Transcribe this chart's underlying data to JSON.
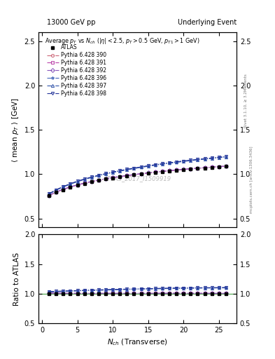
{
  "title_left": "13000 GeV pp",
  "title_right": "Underlying Event",
  "inner_title": "Average $p_{T}$ vs $N_{ch}$ ($|\\eta| < 2.5$, $p_{T} > 0.5$ GeV, $p_{T1} > 1$ GeV)",
  "ylabel_main": "$\\langle$ mean $p_{T}$ $\\rangle$ [GeV]",
  "ylabel_ratio": "Ratio to ATLAS",
  "xlabel": "$N_{ch}$ (Transverse)",
  "watermark": "ATLAS_2017_I1509919",
  "right_label1": "Rivet 3.1.10, ≥ 3.2M events",
  "right_label2": "mcplots.cern.ch [arXiv:1306.3436]",
  "ylim_main": [
    0.4,
    2.6
  ],
  "ylim_ratio": [
    0.5,
    2.0
  ],
  "yticks_main": [
    0.5,
    1.0,
    1.5,
    2.0,
    2.5
  ],
  "yticks_ratio": [
    0.5,
    1.0,
    1.5,
    2.0
  ],
  "xlim": [
    -0.5,
    27.5
  ],
  "xticks": [
    0,
    5,
    10,
    15,
    20,
    25
  ],
  "atlas_x": [
    1,
    2,
    3,
    4,
    5,
    6,
    7,
    8,
    9,
    10,
    11,
    12,
    13,
    14,
    15,
    16,
    17,
    18,
    19,
    20,
    21,
    22,
    23,
    24,
    25,
    26
  ],
  "atlas_y": [
    0.755,
    0.795,
    0.825,
    0.853,
    0.876,
    0.896,
    0.914,
    0.93,
    0.945,
    0.958,
    0.97,
    0.981,
    0.992,
    1.001,
    1.011,
    1.019,
    1.027,
    1.035,
    1.042,
    1.05,
    1.057,
    1.063,
    1.069,
    1.076,
    1.082,
    1.088
  ],
  "atlas_yerr": [
    0.01,
    0.008,
    0.007,
    0.006,
    0.006,
    0.005,
    0.005,
    0.005,
    0.005,
    0.005,
    0.005,
    0.005,
    0.005,
    0.005,
    0.005,
    0.005,
    0.005,
    0.005,
    0.006,
    0.006,
    0.006,
    0.006,
    0.007,
    0.007,
    0.008,
    0.009
  ],
  "series": [
    {
      "label": "Pythia 6.428 390",
      "color": "#cc6677",
      "marker": "o",
      "linestyle": "-.",
      "x": [
        1,
        2,
        3,
        4,
        5,
        6,
        7,
        8,
        9,
        10,
        11,
        12,
        13,
        14,
        15,
        16,
        17,
        18,
        19,
        20,
        21,
        22,
        23,
        24,
        25,
        26
      ],
      "y": [
        0.758,
        0.797,
        0.827,
        0.854,
        0.877,
        0.897,
        0.915,
        0.931,
        0.946,
        0.959,
        0.971,
        0.982,
        0.993,
        1.003,
        1.012,
        1.021,
        1.029,
        1.037,
        1.045,
        1.052,
        1.059,
        1.065,
        1.071,
        1.077,
        1.083,
        1.089
      ]
    },
    {
      "label": "Pythia 6.428 391",
      "color": "#bb44aa",
      "marker": "s",
      "linestyle": "-.",
      "x": [
        1,
        2,
        3,
        4,
        5,
        6,
        7,
        8,
        9,
        10,
        11,
        12,
        13,
        14,
        15,
        16,
        17,
        18,
        19,
        20,
        21,
        22,
        23,
        24,
        25,
        26
      ],
      "y": [
        0.76,
        0.799,
        0.829,
        0.856,
        0.879,
        0.899,
        0.917,
        0.933,
        0.948,
        0.961,
        0.973,
        0.984,
        0.995,
        1.005,
        1.014,
        1.023,
        1.031,
        1.039,
        1.047,
        1.054,
        1.061,
        1.067,
        1.073,
        1.079,
        1.085,
        1.091
      ]
    },
    {
      "label": "Pythia 6.428 392",
      "color": "#8855bb",
      "marker": "D",
      "linestyle": "-.",
      "x": [
        1,
        2,
        3,
        4,
        5,
        6,
        7,
        8,
        9,
        10,
        11,
        12,
        13,
        14,
        15,
        16,
        17,
        18,
        19,
        20,
        21,
        22,
        23,
        24,
        25,
        26
      ],
      "y": [
        0.761,
        0.8,
        0.83,
        0.857,
        0.88,
        0.9,
        0.918,
        0.934,
        0.949,
        0.962,
        0.974,
        0.985,
        0.996,
        1.006,
        1.015,
        1.024,
        1.032,
        1.04,
        1.048,
        1.055,
        1.062,
        1.068,
        1.074,
        1.08,
        1.086,
        1.092
      ]
    },
    {
      "label": "Pythia 6.428 396",
      "color": "#4466bb",
      "marker": "*",
      "linestyle": "-.",
      "x": [
        1,
        2,
        3,
        4,
        5,
        6,
        7,
        8,
        9,
        10,
        11,
        12,
        13,
        14,
        15,
        16,
        17,
        18,
        19,
        20,
        21,
        22,
        23,
        24,
        25,
        26
      ],
      "y": [
        0.775,
        0.82,
        0.855,
        0.887,
        0.915,
        0.94,
        0.962,
        0.982,
        1.001,
        1.018,
        1.034,
        1.049,
        1.063,
        1.076,
        1.089,
        1.101,
        1.112,
        1.123,
        1.133,
        1.143,
        1.152,
        1.161,
        1.169,
        1.177,
        1.185,
        1.193
      ]
    },
    {
      "label": "Pythia 6.428 397",
      "color": "#3355aa",
      "marker": "^",
      "linestyle": "-.",
      "x": [
        1,
        2,
        3,
        4,
        5,
        6,
        7,
        8,
        9,
        10,
        11,
        12,
        13,
        14,
        15,
        16,
        17,
        18,
        19,
        20,
        21,
        22,
        23,
        24,
        25,
        26
      ],
      "y": [
        0.778,
        0.823,
        0.858,
        0.89,
        0.918,
        0.943,
        0.965,
        0.985,
        1.004,
        1.021,
        1.037,
        1.052,
        1.066,
        1.079,
        1.092,
        1.104,
        1.115,
        1.126,
        1.136,
        1.146,
        1.155,
        1.164,
        1.172,
        1.18,
        1.188,
        1.196
      ]
    },
    {
      "label": "Pythia 6.428 398",
      "color": "#223399",
      "marker": "v",
      "linestyle": "-.",
      "x": [
        1,
        2,
        3,
        4,
        5,
        6,
        7,
        8,
        9,
        10,
        11,
        12,
        13,
        14,
        15,
        16,
        17,
        18,
        19,
        20,
        21,
        22,
        23,
        24,
        25,
        26
      ],
      "y": [
        0.78,
        0.825,
        0.86,
        0.893,
        0.921,
        0.946,
        0.968,
        0.988,
        1.007,
        1.024,
        1.04,
        1.055,
        1.069,
        1.082,
        1.095,
        1.107,
        1.118,
        1.129,
        1.139,
        1.149,
        1.158,
        1.167,
        1.175,
        1.183,
        1.191,
        1.199
      ]
    }
  ]
}
